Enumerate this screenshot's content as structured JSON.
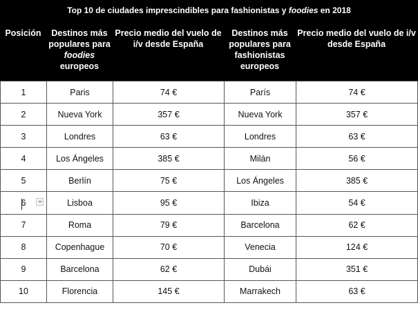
{
  "caption": {
    "prefix": "Top 10 de ciudades imprescindibles para fashionistas y ",
    "italic": "foodies",
    "suffix": " en 2018"
  },
  "headers": {
    "position": "Posición",
    "foodie_dest_pre": "Destinos más populares para ",
    "foodie_dest_italic": "foodies",
    "foodie_dest_post": " europeos",
    "foodie_price": "Precio medio del vuelo de i/v desde España",
    "fashion_dest": "Destinos más populares para fashionistas europeos",
    "fashion_price": "Precio medio del vuelo de i/v desde España"
  },
  "rows": [
    {
      "pos": "1",
      "foodie_city": "Paris",
      "foodie_price": "74 €",
      "fashion_city": "París",
      "fashion_price": "74 €"
    },
    {
      "pos": "2",
      "foodie_city": "Nueva York",
      "foodie_price": "357 €",
      "fashion_city": "Nueva York",
      "fashion_price": "357 €"
    },
    {
      "pos": "3",
      "foodie_city": "Londres",
      "foodie_price": "63 €",
      "fashion_city": "Londres",
      "fashion_price": "63 €"
    },
    {
      "pos": "4",
      "foodie_city": "Los Ángeles",
      "foodie_price": "385 €",
      "fashion_city": "Milán",
      "fashion_price": "56 €"
    },
    {
      "pos": "5",
      "foodie_city": "Berlín",
      "foodie_price": "75 €",
      "fashion_city": "Los Ángeles",
      "fashion_price": "385 €"
    },
    {
      "pos": "6",
      "foodie_city": "Lisboa",
      "foodie_price": "95 €",
      "fashion_city": "Ibiza",
      "fashion_price": "54 €"
    },
    {
      "pos": "7",
      "foodie_city": "Roma",
      "foodie_price": "79 €",
      "fashion_city": "Barcelona",
      "fashion_price": "62 €"
    },
    {
      "pos": "8",
      "foodie_city": "Copenhague",
      "foodie_price": "70 €",
      "fashion_city": "Venecia",
      "fashion_price": "124 €"
    },
    {
      "pos": "9",
      "foodie_city": "Barcelona",
      "foodie_price": "62 €",
      "fashion_city": "Dubái",
      "fashion_price": "351 €"
    },
    {
      "pos": "10",
      "foodie_city": "Florencia",
      "foodie_price": "145 €",
      "fashion_city": "Marrakech",
      "fashion_price": "63 €"
    }
  ],
  "colors": {
    "header_bg": "#000000",
    "header_text": "#ffffff",
    "border": "#555555"
  }
}
